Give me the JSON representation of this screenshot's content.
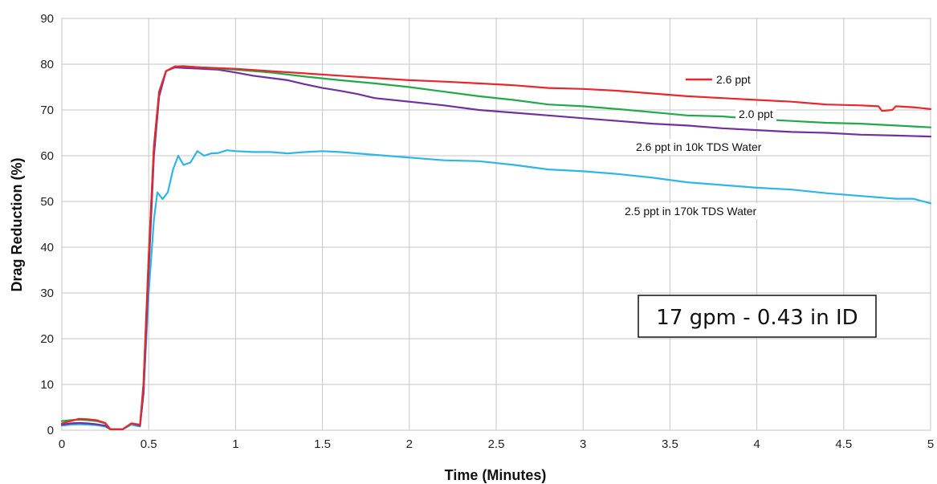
{
  "chart_data": {
    "type": "line",
    "title": "",
    "xlabel": "Time (Minutes)",
    "ylabel": "Drag Reduction (%)",
    "xlim": [
      0,
      5
    ],
    "ylim": [
      0,
      90
    ],
    "x_ticks": [
      "0",
      "0.5",
      "1",
      "1.5",
      "2",
      "2.5",
      "3",
      "3.5",
      "4",
      "4.5",
      "5"
    ],
    "y_ticks": [
      "0",
      "10",
      "20",
      "30",
      "40",
      "50",
      "60",
      "70",
      "80",
      "90"
    ],
    "grid": true,
    "annotation": "17 gpm - 0.43 in ID",
    "series": [
      {
        "name": "2.6 ppt",
        "color": "#e8262b",
        "x": [
          0,
          0.05,
          0.1,
          0.15,
          0.2,
          0.25,
          0.28,
          0.35,
          0.4,
          0.45,
          0.47,
          0.5,
          0.53,
          0.56,
          0.6,
          0.65,
          0.7,
          0.8,
          1.0,
          1.2,
          1.4,
          1.6,
          1.8,
          2.0,
          2.2,
          2.4,
          2.6,
          2.8,
          3.0,
          3.2,
          3.4,
          3.6,
          3.8,
          4.0,
          4.2,
          4.4,
          4.6,
          4.7,
          4.72,
          4.78,
          4.8,
          4.9,
          5.0
        ],
        "y": [
          1.5,
          2.0,
          2.5,
          2.4,
          2.2,
          1.6,
          0.2,
          0.2,
          1.5,
          1.2,
          10,
          38,
          62,
          74,
          78.5,
          79.5,
          79.5,
          79.3,
          79.0,
          78.5,
          78.0,
          77.5,
          77.0,
          76.5,
          76.2,
          75.8,
          75.4,
          74.8,
          74.6,
          74.2,
          73.6,
          73.0,
          72.6,
          72.2,
          71.8,
          71.2,
          71.0,
          70.8,
          69.8,
          70.0,
          70.8,
          70.6,
          70.2
        ]
      },
      {
        "name": "2.0 ppt",
        "color": "#22a84a",
        "x": [
          0,
          0.05,
          0.1,
          0.15,
          0.2,
          0.25,
          0.28,
          0.35,
          0.4,
          0.45,
          0.47,
          0.5,
          0.53,
          0.56,
          0.6,
          0.65,
          0.7,
          0.8,
          1.0,
          1.2,
          1.4,
          1.6,
          1.8,
          2.0,
          2.2,
          2.4,
          2.6,
          2.8,
          3.0,
          3.2,
          3.4,
          3.6,
          3.8,
          4.0,
          4.2,
          4.4,
          4.6,
          4.8,
          5.0
        ],
        "y": [
          2.0,
          2.2,
          2.3,
          2.2,
          2.0,
          1.5,
          0.2,
          0.2,
          1.5,
          1.2,
          10,
          38,
          62,
          74,
          78.5,
          79.5,
          79.6,
          79.3,
          78.8,
          78.2,
          77.3,
          76.5,
          75.8,
          75.0,
          74.0,
          73.0,
          72.2,
          71.2,
          70.8,
          70.2,
          69.5,
          68.8,
          68.6,
          68.0,
          67.6,
          67.2,
          67.0,
          66.6,
          66.2
        ]
      },
      {
        "name": "2.6 ppt in 10k TDS Water",
        "color": "#7030a0",
        "x": [
          0,
          0.05,
          0.1,
          0.15,
          0.2,
          0.25,
          0.28,
          0.35,
          0.4,
          0.45,
          0.47,
          0.5,
          0.53,
          0.56,
          0.6,
          0.65,
          0.7,
          0.8,
          0.9,
          1.0,
          1.1,
          1.2,
          1.3,
          1.4,
          1.5,
          1.6,
          1.7,
          1.8,
          2.0,
          2.2,
          2.4,
          2.6,
          2.8,
          3.0,
          3.2,
          3.4,
          3.6,
          3.8,
          4.0,
          4.2,
          4.4,
          4.6,
          4.8,
          5.0
        ],
        "y": [
          1.2,
          1.5,
          1.6,
          1.5,
          1.3,
          1.0,
          0.2,
          0.2,
          1.5,
          1.0,
          8,
          35,
          60,
          73,
          78.5,
          79.3,
          79.2,
          79.0,
          78.8,
          78.2,
          77.5,
          77.0,
          76.5,
          75.6,
          74.8,
          74.2,
          73.5,
          72.6,
          71.8,
          71.0,
          70.0,
          69.4,
          68.8,
          68.2,
          67.6,
          67.0,
          66.6,
          66.0,
          65.6,
          65.2,
          65.0,
          64.6,
          64.4,
          64.2
        ]
      },
      {
        "name": "2.5 ppt in 170k TDS Water",
        "color": "#2fb5e8",
        "x": [
          0,
          0.05,
          0.1,
          0.15,
          0.2,
          0.25,
          0.28,
          0.35,
          0.4,
          0.45,
          0.47,
          0.5,
          0.53,
          0.55,
          0.58,
          0.61,
          0.64,
          0.67,
          0.7,
          0.74,
          0.78,
          0.82,
          0.86,
          0.9,
          0.95,
          1.0,
          1.1,
          1.2,
          1.3,
          1.4,
          1.5,
          1.6,
          1.7,
          1.8,
          2.0,
          2.2,
          2.4,
          2.6,
          2.8,
          3.0,
          3.2,
          3.4,
          3.6,
          3.8,
          4.0,
          4.2,
          4.4,
          4.6,
          4.8,
          4.9,
          5.0
        ],
        "y": [
          1.0,
          1.2,
          1.3,
          1.2,
          1.1,
          0.8,
          0.2,
          0.2,
          1.2,
          0.8,
          8,
          30,
          46,
          52,
          50.5,
          52,
          57,
          60,
          58,
          58.5,
          61,
          60,
          60.5,
          60.6,
          61.2,
          61.0,
          60.8,
          60.8,
          60.5,
          60.8,
          61.0,
          60.8,
          60.5,
          60.2,
          59.6,
          59.0,
          58.8,
          58.0,
          57.0,
          56.6,
          56.0,
          55.2,
          54.2,
          53.6,
          53.0,
          52.6,
          51.8,
          51.2,
          50.6,
          50.6,
          49.6
        ]
      }
    ],
    "series_labels": [
      {
        "text": "2.6 ppt",
        "series": 0
      },
      {
        "text": "2.0 ppt",
        "series": 1
      },
      {
        "text": "2.6 ppt  in 10k TDS Water",
        "series": 2
      },
      {
        "text": "2.5 ppt  in 170k TDS Water",
        "series": 3
      }
    ]
  }
}
